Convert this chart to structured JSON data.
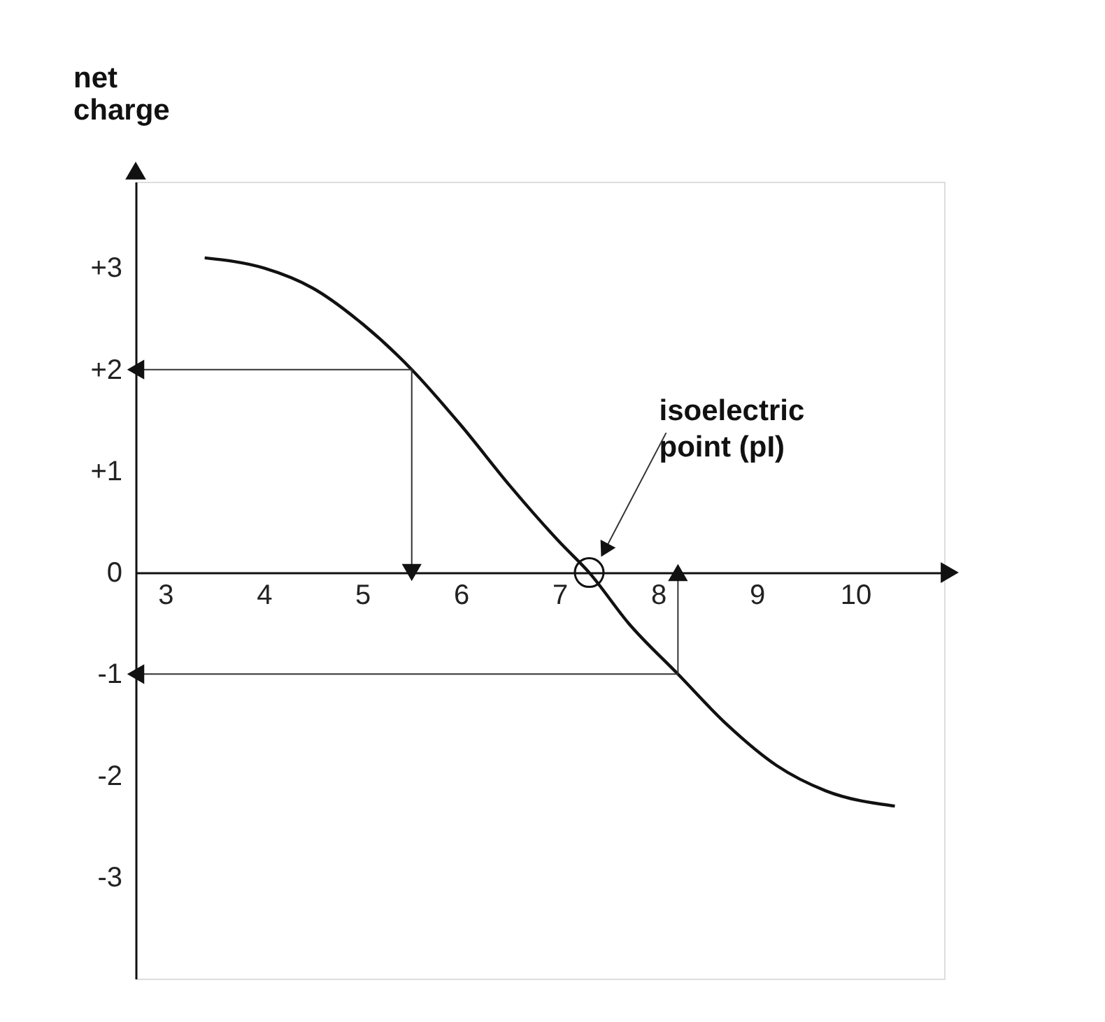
{
  "chart_data": {
    "type": "line",
    "ylabel": "net charge",
    "x": [
      3.4,
      4.0,
      4.5,
      5.0,
      5.5,
      6.0,
      6.5,
      7.0,
      7.3,
      7.7,
      8.2,
      8.7,
      9.2,
      9.7,
      10.4
    ],
    "series": [
      {
        "color": "#111111",
        "values": [
          3.1,
          3.0,
          2.8,
          2.45,
          2.0,
          1.45,
          0.85,
          0.3,
          0.0,
          -0.5,
          -1.0,
          -1.5,
          -1.9,
          -2.15,
          -2.3
        ]
      }
    ],
    "xlim": [
      2.7,
      10.9
    ],
    "xticks": [
      3,
      4,
      5,
      6,
      7,
      8,
      9,
      10
    ],
    "ylim": [
      -4,
      3.85
    ],
    "yticks": [
      {
        "value": 3,
        "label": "+3"
      },
      {
        "value": 2,
        "label": "+2"
      },
      {
        "value": 1,
        "label": "+1"
      },
      0,
      -1,
      -2,
      -3
    ],
    "ref_lines": [
      {
        "axis": "y",
        "value": 2,
        "color": "#333333"
      },
      {
        "axis": "y",
        "value": -1,
        "color": "#333333"
      },
      {
        "axis": "x",
        "value": 5.5,
        "color": "#333333"
      },
      {
        "axis": "x",
        "value": 8.2,
        "color": "#333333"
      }
    ],
    "annotations": [
      "isoelectric point (pI)"
    ],
    "grid": false,
    "marker": "none",
    "line_style": "solid"
  }
}
